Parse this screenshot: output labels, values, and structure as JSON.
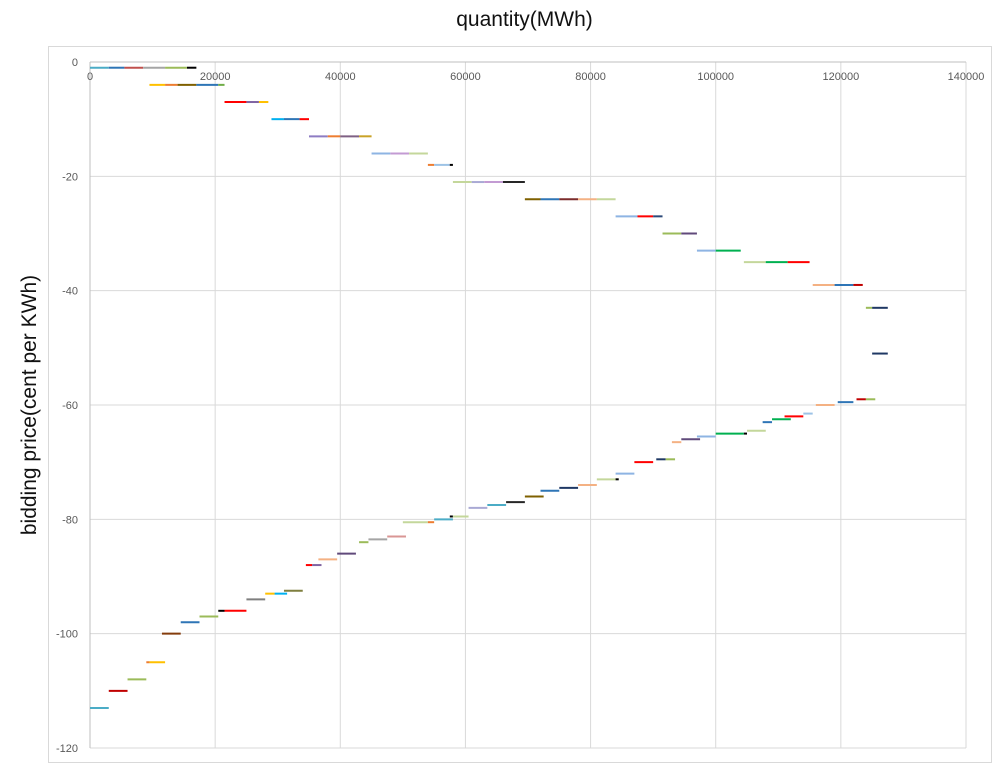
{
  "chart_data": {
    "type": "bar",
    "title": "quantity(MWh)",
    "xlabel": "",
    "ylabel": "bidding  price(cent per KWh)",
    "xlim": [
      0,
      140000
    ],
    "ylim": [
      -120,
      0
    ],
    "x_ticks": [
      0,
      20000,
      40000,
      60000,
      80000,
      100000,
      120000,
      140000
    ],
    "y_ticks": [
      0,
      -20,
      -40,
      -60,
      -80,
      -100,
      -120
    ],
    "x_axis_position": "top",
    "grid": true,
    "legend": "none",
    "series": [
      {
        "price": -1,
        "segments": [
          [
            0,
            3000,
            "#4bacc6"
          ],
          [
            3000,
            5500,
            "#2e75b6"
          ],
          [
            5500,
            8500,
            "#c0504d"
          ],
          [
            8500,
            12000,
            "#a5a5a5"
          ],
          [
            12000,
            15500,
            "#9bbb59"
          ],
          [
            15500,
            17000,
            "#000000"
          ]
        ]
      },
      {
        "price": -4,
        "segments": [
          [
            9500,
            12000,
            "#ffc000"
          ],
          [
            12000,
            14000,
            "#ed7d31"
          ],
          [
            14000,
            17000,
            "#7f6000"
          ],
          [
            17000,
            20500,
            "#2e75b6"
          ],
          [
            20500,
            21500,
            "#70ad47"
          ]
        ]
      },
      {
        "price": -7,
        "segments": [
          [
            21500,
            25000,
            "#ff0000"
          ],
          [
            25000,
            27000,
            "#8064a2"
          ],
          [
            27000,
            28500,
            "#ffc000"
          ]
        ]
      },
      {
        "price": -10,
        "segments": [
          [
            29000,
            31000,
            "#00b0f0"
          ],
          [
            31000,
            33500,
            "#2e75b6"
          ],
          [
            33500,
            35000,
            "#ff0000"
          ]
        ]
      },
      {
        "price": -13,
        "segments": [
          [
            35000,
            38000,
            "#8e7cc3"
          ],
          [
            38000,
            40000,
            "#ed7d31"
          ],
          [
            40000,
            43000,
            "#7f6084"
          ],
          [
            43000,
            45000,
            "#c9a227"
          ]
        ]
      },
      {
        "price": -16,
        "segments": [
          [
            45000,
            48000,
            "#8eb4e3"
          ],
          [
            48000,
            51000,
            "#c39bd3"
          ],
          [
            51000,
            54000,
            "#c4d79b"
          ]
        ]
      },
      {
        "price": -18,
        "segments": [
          [
            54000,
            55000,
            "#ed7d31"
          ],
          [
            55000,
            57500,
            "#9dc3e6"
          ],
          [
            57500,
            58000,
            "#000000"
          ]
        ]
      },
      {
        "price": -21,
        "segments": [
          [
            58000,
            61000,
            "#c4d79b"
          ],
          [
            61000,
            63000,
            "#a9a9d4"
          ],
          [
            63000,
            66000,
            "#c39bd3"
          ],
          [
            66000,
            69500,
            "#262626"
          ]
        ]
      },
      {
        "price": -24,
        "segments": [
          [
            69500,
            72000,
            "#7f6000"
          ],
          [
            72000,
            75000,
            "#2e75b6"
          ],
          [
            75000,
            78000,
            "#7b2c2c"
          ],
          [
            78000,
            81000,
            "#f4b183"
          ],
          [
            81000,
            84000,
            "#c4d79b"
          ]
        ]
      },
      {
        "price": -27,
        "segments": [
          [
            84000,
            87500,
            "#8eb4e3"
          ],
          [
            87500,
            90000,
            "#ff0000"
          ],
          [
            90000,
            91500,
            "#2e4a7a"
          ]
        ]
      },
      {
        "price": -30,
        "segments": [
          [
            91500,
            94500,
            "#9bbb59"
          ],
          [
            94500,
            97000,
            "#604a7b"
          ]
        ]
      },
      {
        "price": -33,
        "segments": [
          [
            97000,
            100000,
            "#8eb4e3"
          ],
          [
            100000,
            104000,
            "#00b050"
          ]
        ]
      },
      {
        "price": -35,
        "segments": [
          [
            104500,
            108000,
            "#c4d79b"
          ],
          [
            108000,
            111500,
            "#00b050"
          ],
          [
            111500,
            115000,
            "#ff0000"
          ]
        ]
      },
      {
        "price": -39,
        "segments": [
          [
            115500,
            119000,
            "#f4b183"
          ],
          [
            119000,
            122000,
            "#2e75b6"
          ],
          [
            122000,
            123500,
            "#c00000"
          ]
        ]
      },
      {
        "price": -43,
        "segments": [
          [
            124000,
            125000,
            "#9bbb59"
          ],
          [
            125000,
            127500,
            "#1f3864"
          ]
        ]
      },
      {
        "price": -51,
        "segments": [
          [
            125000,
            127500,
            "#1f3864"
          ]
        ]
      },
      {
        "price": -59,
        "segments": [
          [
            122500,
            124000,
            "#c00000"
          ],
          [
            124000,
            125500,
            "#9bbb59"
          ]
        ]
      },
      {
        "price": -59.5,
        "segments": [
          [
            119500,
            122000,
            "#2e75b6"
          ]
        ]
      },
      {
        "price": -60,
        "segments": [
          [
            116000,
            119000,
            "#f4b183"
          ]
        ]
      },
      {
        "price": -61.5,
        "segments": [
          [
            114000,
            115500,
            "#9dc3e6"
          ]
        ]
      },
      {
        "price": -62,
        "segments": [
          [
            111000,
            114000,
            "#ff0000"
          ]
        ]
      },
      {
        "price": -62.5,
        "segments": [
          [
            109000,
            112000,
            "#00b050"
          ]
        ]
      },
      {
        "price": -63,
        "segments": [
          [
            107500,
            109000,
            "#2e75b6"
          ]
        ]
      },
      {
        "price": -64.5,
        "segments": [
          [
            105000,
            108000,
            "#c4d79b"
          ]
        ]
      },
      {
        "price": -65,
        "segments": [
          [
            100000,
            104500,
            "#00b050"
          ],
          [
            104500,
            105000,
            "#000000"
          ]
        ]
      },
      {
        "price": -65.5,
        "segments": [
          [
            97000,
            100000,
            "#8eb4e3"
          ]
        ]
      },
      {
        "price": -66,
        "segments": [
          [
            94500,
            97500,
            "#604a7b"
          ]
        ]
      },
      {
        "price": -66.5,
        "segments": [
          [
            93000,
            94500,
            "#f4b183"
          ]
        ]
      },
      {
        "price": -69.5,
        "segments": [
          [
            90500,
            92000,
            "#1f3864"
          ],
          [
            92000,
            93500,
            "#9bbb59"
          ]
        ]
      },
      {
        "price": -70,
        "segments": [
          [
            87000,
            90000,
            "#ff0000"
          ]
        ]
      },
      {
        "price": -72,
        "segments": [
          [
            84000,
            87000,
            "#8eb4e3"
          ]
        ]
      },
      {
        "price": -73,
        "segments": [
          [
            81000,
            84000,
            "#c4d79b"
          ],
          [
            84000,
            84500,
            "#000000"
          ]
        ]
      },
      {
        "price": -74,
        "segments": [
          [
            78000,
            81000,
            "#f4b183"
          ]
        ]
      },
      {
        "price": -74.5,
        "segments": [
          [
            75000,
            78000,
            "#1f3864"
          ]
        ]
      },
      {
        "price": -75,
        "segments": [
          [
            72000,
            75000,
            "#2e75b6"
          ]
        ]
      },
      {
        "price": -76,
        "segments": [
          [
            69500,
            72500,
            "#7f6000"
          ]
        ]
      },
      {
        "price": -77,
        "segments": [
          [
            66500,
            69500,
            "#262626"
          ]
        ]
      },
      {
        "price": -77.5,
        "segments": [
          [
            63500,
            66500,
            "#4bacc6"
          ]
        ]
      },
      {
        "price": -78,
        "segments": [
          [
            60500,
            63500,
            "#a9a9d4"
          ]
        ]
      },
      {
        "price": -79.5,
        "segments": [
          [
            57500,
            58000,
            "#000000"
          ],
          [
            58000,
            60500,
            "#c4d79b"
          ]
        ]
      },
      {
        "price": -80,
        "segments": [
          [
            55000,
            58000,
            "#4bacc6"
          ]
        ]
      },
      {
        "price": -80.5,
        "segments": [
          [
            50000,
            54000,
            "#c4d79b"
          ],
          [
            54000,
            55000,
            "#ed7d31"
          ]
        ]
      },
      {
        "price": -83,
        "segments": [
          [
            47500,
            50500,
            "#d99694"
          ]
        ]
      },
      {
        "price": -83.5,
        "segments": [
          [
            44500,
            47500,
            "#a5a5a5"
          ]
        ]
      },
      {
        "price": -84,
        "segments": [
          [
            43000,
            44500,
            "#9bbb59"
          ]
        ]
      },
      {
        "price": -86,
        "segments": [
          [
            39500,
            42500,
            "#604a7b"
          ]
        ]
      },
      {
        "price": -87,
        "segments": [
          [
            36500,
            39500,
            "#f4b183"
          ]
        ]
      },
      {
        "price": -88,
        "segments": [
          [
            34500,
            35500,
            "#ff0000"
          ],
          [
            35500,
            37000,
            "#8064a2"
          ]
        ]
      },
      {
        "price": -92.5,
        "segments": [
          [
            31000,
            34000,
            "#7f7f3f"
          ]
        ]
      },
      {
        "price": -93,
        "segments": [
          [
            28000,
            29500,
            "#ffc000"
          ],
          [
            29500,
            31500,
            "#00b0f0"
          ]
        ]
      },
      {
        "price": -94,
        "segments": [
          [
            25000,
            28000,
            "#7f7f7f"
          ]
        ]
      },
      {
        "price": -96,
        "segments": [
          [
            20500,
            21500,
            "#000000"
          ],
          [
            21500,
            25000,
            "#ff0000"
          ]
        ]
      },
      {
        "price": -97,
        "segments": [
          [
            17500,
            20500,
            "#9bbb59"
          ]
        ]
      },
      {
        "price": -98,
        "segments": [
          [
            14500,
            17500,
            "#2e75b6"
          ]
        ]
      },
      {
        "price": -100,
        "segments": [
          [
            11500,
            14500,
            "#843c0c"
          ]
        ]
      },
      {
        "price": -105,
        "segments": [
          [
            9000,
            9500,
            "#ed7d31"
          ],
          [
            9500,
            12000,
            "#ffc000"
          ]
        ]
      },
      {
        "price": -108,
        "segments": [
          [
            6000,
            9000,
            "#9bbb59"
          ]
        ]
      },
      {
        "price": -110,
        "segments": [
          [
            3000,
            6000,
            "#c00000"
          ]
        ]
      },
      {
        "price": -113,
        "segments": [
          [
            0,
            3000,
            "#4bacc6"
          ]
        ]
      }
    ]
  }
}
